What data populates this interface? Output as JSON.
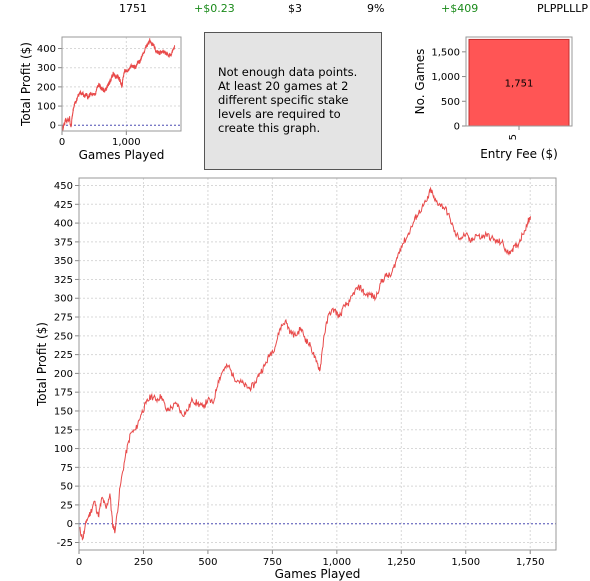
{
  "stats": {
    "games": "1751",
    "avg_profit": "+$0.23",
    "avg_stake": "$3",
    "roi": "9%",
    "total_profit": "+$409",
    "streak": "PLPPLLLP"
  },
  "message": "Not enough data points. At least 20 games at 2 different specific stake levels are required to create this graph.",
  "colors": {
    "line": "#e84a4a",
    "bar": "#ff5555",
    "zero_line": "#5555bb"
  },
  "chart_data": [
    {
      "type": "line",
      "xlabel": "Games Played",
      "ylabel": "Total Profit ($)",
      "xlim": [
        0,
        1850
      ],
      "ylim": [
        -35,
        460
      ],
      "xticks": [
        "0",
        "250",
        "500",
        "750",
        "1,000",
        "1,250",
        "1,500",
        "1,750"
      ],
      "yticks": [
        "-25",
        "0",
        "25",
        "50",
        "75",
        "100",
        "125",
        "150",
        "175",
        "200",
        "225",
        "250",
        "275",
        "300",
        "325",
        "350",
        "375",
        "400",
        "425",
        "450"
      ],
      "grid": true,
      "series": [
        {
          "x": [
            0,
            15,
            30,
            45,
            60,
            75,
            90,
            105,
            120,
            130,
            140,
            160,
            180,
            200,
            220,
            240,
            260,
            280,
            300,
            320,
            340,
            360,
            380,
            400,
            420,
            440,
            460,
            480,
            500,
            520,
            540,
            560,
            580,
            600,
            620,
            640,
            660,
            680,
            700,
            720,
            740,
            760,
            780,
            800,
            820,
            840,
            860,
            880,
            900,
            920,
            935,
            950,
            970,
            990,
            1010,
            1030,
            1050,
            1070,
            1090,
            1110,
            1130,
            1150,
            1170,
            1190,
            1210,
            1230,
            1250,
            1270,
            1290,
            1310,
            1330,
            1350,
            1365,
            1380,
            1400,
            1420,
            1440,
            1460,
            1480,
            1500,
            1520,
            1540,
            1560,
            1580,
            1600,
            1620,
            1640,
            1660,
            1680,
            1700,
            1720,
            1740,
            1751
          ],
          "y": [
            -5,
            -20,
            5,
            15,
            30,
            10,
            35,
            20,
            40,
            0,
            -10,
            50,
            90,
            120,
            125,
            145,
            160,
            170,
            165,
            170,
            150,
            155,
            160,
            145,
            150,
            165,
            160,
            155,
            165,
            160,
            190,
            205,
            210,
            195,
            190,
            185,
            180,
            185,
            200,
            210,
            225,
            235,
            260,
            270,
            255,
            250,
            260,
            245,
            235,
            215,
            205,
            250,
            280,
            285,
            275,
            290,
            295,
            310,
            315,
            305,
            305,
            300,
            320,
            330,
            330,
            350,
            370,
            380,
            395,
            410,
            420,
            430,
            445,
            430,
            425,
            420,
            405,
            385,
            380,
            385,
            375,
            385,
            380,
            385,
            380,
            375,
            375,
            360,
            365,
            370,
            385,
            400,
            409
          ]
        }
      ]
    },
    {
      "type": "line",
      "xlabel": "Games Played",
      "ylabel": "Total Profit ($)",
      "xlim": [
        0,
        1850
      ],
      "ylim": [
        -30,
        460
      ],
      "xticks": [
        "0",
        "1,000"
      ],
      "yticks": [
        "0",
        "100",
        "200",
        "300",
        "400"
      ],
      "grid": true
    },
    {
      "type": "bar",
      "categories": [
        "5"
      ],
      "values": [
        1751
      ],
      "data_labels": [
        "1,751"
      ],
      "xlabel": "Entry Fee ($)",
      "ylabel": "No. Games",
      "ylim": [
        0,
        1800
      ],
      "yticks": [
        "0",
        "500",
        "1,000",
        "1,500"
      ]
    }
  ]
}
